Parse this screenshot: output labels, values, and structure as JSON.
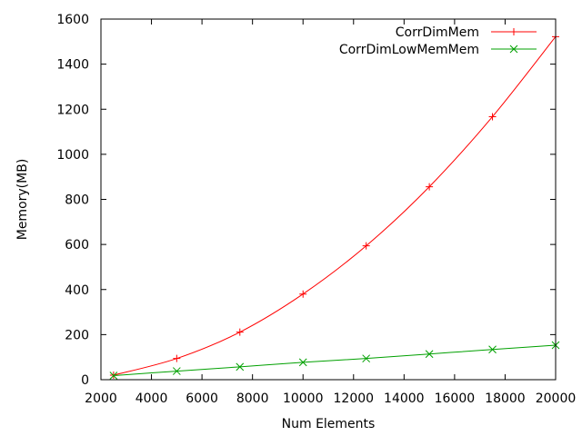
{
  "chart_data": {
    "type": "line",
    "title": "",
    "xlabel": "Num Elements",
    "ylabel": "Memory(MB)",
    "xlim": [
      2000,
      20000
    ],
    "ylim": [
      0,
      1600
    ],
    "xticks": [
      2000,
      4000,
      6000,
      8000,
      10000,
      12000,
      14000,
      16000,
      18000,
      20000
    ],
    "yticks": [
      0,
      200,
      400,
      600,
      800,
      1000,
      1200,
      1400,
      1600
    ],
    "grid": false,
    "legend_position": "top-right",
    "series": [
      {
        "name": "CorrDimMem",
        "color": "#ff0000",
        "marker": "plus",
        "x": [
          2500,
          5000,
          7500,
          10000,
          12500,
          15000,
          17500,
          20000
        ],
        "y": [
          20,
          94,
          211,
          380,
          594,
          856,
          1167,
          1522
        ]
      },
      {
        "name": "CorrDimLowMemMem",
        "color": "#00a000",
        "marker": "cross",
        "x": [
          2500,
          5000,
          7500,
          10000,
          12500,
          15000,
          17500,
          20000
        ],
        "y": [
          18,
          38,
          57,
          77,
          94,
          114,
          134,
          153
        ]
      }
    ]
  }
}
